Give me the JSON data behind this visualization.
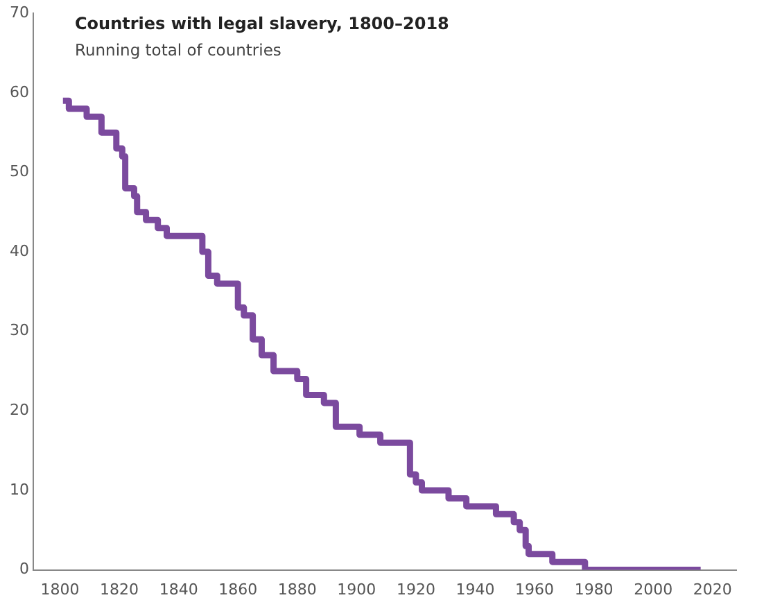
{
  "chart_data": {
    "type": "step",
    "title": "Countries with legal slavery, 1800–2018",
    "subtitle": "Running total of countries",
    "x": [
      1801,
      1803,
      1809,
      1814,
      1819,
      1821,
      1822,
      1825,
      1826,
      1829,
      1833,
      1836,
      1848,
      1850,
      1853,
      1860,
      1862,
      1865,
      1868,
      1872,
      1880,
      1883,
      1889,
      1893,
      1901,
      1908,
      1918,
      1920,
      1922,
      1931,
      1937,
      1947,
      1953,
      1955,
      1957,
      1958,
      1966,
      1977,
      2016
    ],
    "series": [
      {
        "color": "#7b4a9e",
        "values": [
          59,
          58,
          57,
          55,
          53,
          52,
          48,
          47,
          45,
          44,
          43,
          42,
          40,
          37,
          36,
          33,
          32,
          29,
          27,
          25,
          24,
          22,
          21,
          18,
          17,
          16,
          12,
          11,
          10,
          9,
          8,
          7,
          6,
          5,
          3,
          2,
          1,
          0,
          0
        ]
      }
    ],
    "xlim": [
      1791,
      2028
    ],
    "ylim": [
      0,
      70
    ],
    "xticks": [
      1800,
      1820,
      1840,
      1860,
      1880,
      1900,
      1920,
      1940,
      1960,
      1980,
      2000,
      2020
    ],
    "yticks": [
      0,
      10,
      20,
      30,
      40,
      50,
      60,
      70
    ],
    "grid": false,
    "legend": false,
    "marker": "none",
    "line_style": "solid"
  }
}
